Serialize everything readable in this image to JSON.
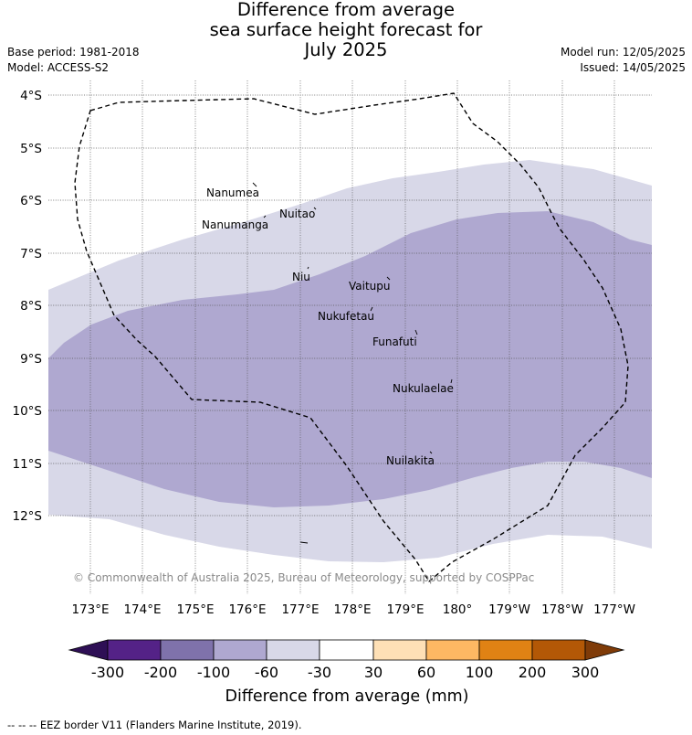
{
  "title": {
    "line1": "Difference from average",
    "line2": "sea surface height forecast for",
    "line3": "July 2025"
  },
  "meta": {
    "base_period": "Base period: 1981-2018",
    "model": "Model: ACCESS-S2",
    "model_run": "Model run: 12/05/2025",
    "issued": "Issued: 14/05/2025"
  },
  "map": {
    "lat_labels": [
      "4°S",
      "5°S",
      "6°S",
      "7°S",
      "8°S",
      "9°S",
      "10°S",
      "11°S",
      "12°S"
    ],
    "lon_labels": [
      "173°E",
      "174°E",
      "175°E",
      "176°E",
      "177°E",
      "178°E",
      "179°E",
      "180°",
      "179°W",
      "178°W",
      "177°W"
    ],
    "places": [
      {
        "name": "Nanumea"
      },
      {
        "name": "Nuitao"
      },
      {
        "name": "Nanumanga"
      },
      {
        "name": "Niu"
      },
      {
        "name": "Vaitupu"
      },
      {
        "name": "Nukufetau"
      },
      {
        "name": "Funafuti"
      },
      {
        "name": "Nukulaelae"
      },
      {
        "name": "Nuilakita"
      }
    ],
    "copyright": "© Commonwealth of Australia 2025, Bureau of Meteorology, supported by COSPPac",
    "fill_colors": {
      "band_-60_-30": "#d8d8e8",
      "band_-100_-60": "#afa8d0"
    }
  },
  "colorbar": {
    "title": "Difference from average (mm)",
    "ticks": [
      "-300",
      "-200",
      "-100",
      "-60",
      "-30",
      "30",
      "60",
      "100",
      "200",
      "300"
    ],
    "colors": [
      "#2e0f55",
      "#542287",
      "#7f72ab",
      "#afa8d0",
      "#d8d8e8",
      "#ffffff",
      "#fee0b6",
      "#fdb863",
      "#e08214",
      "#b35806",
      "#7f3b08"
    ]
  },
  "footnote": "-- -- -- EEZ border V11 (Flanders Marine Institute, 2019)."
}
